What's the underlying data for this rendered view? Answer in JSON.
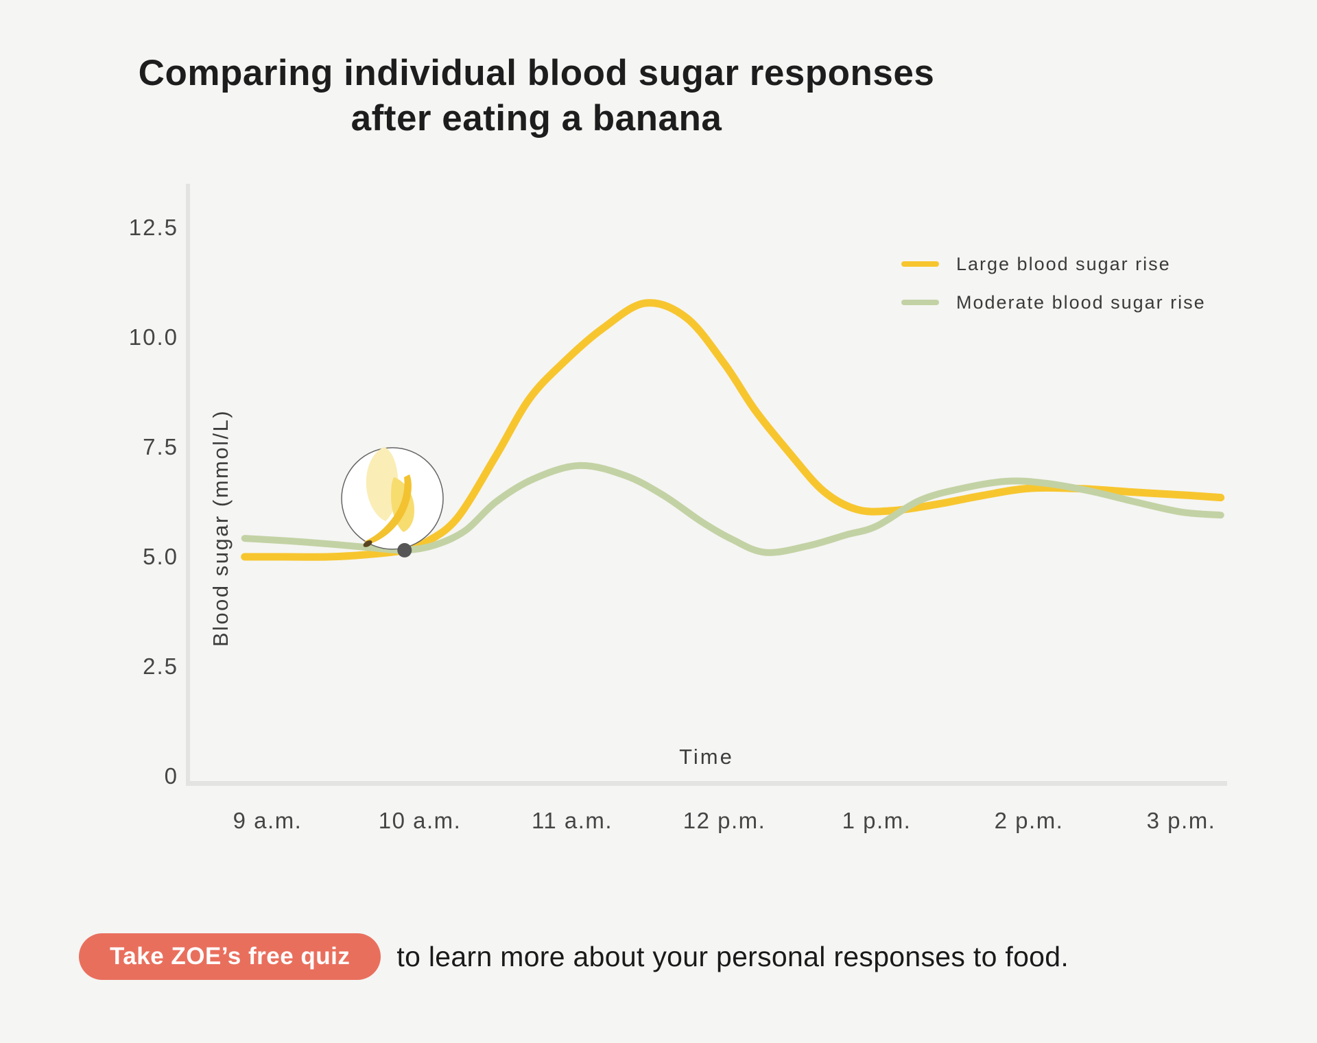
{
  "title": {
    "line1": "Comparing individual blood sugar responses",
    "line2": "after eating a banana"
  },
  "colors": {
    "background": "#F5F5F3",
    "large_series": "#F7C62F",
    "moderate_series": "#C3D2A4",
    "axis_line": "#E3E3E1",
    "marker_dot": "#565656",
    "cta_button": "#E96F5D"
  },
  "chart_data": {
    "type": "line",
    "title": "Comparing individual blood sugar responses after eating a banana",
    "xlabel": "Time",
    "ylabel": "Blood sugar (mmol/L)",
    "x_unit": "hour of day (24h decimal)",
    "x_ticks": [
      9,
      10,
      11,
      12,
      13,
      14,
      15
    ],
    "x_tick_labels": [
      "9 a.m.",
      "10 a.m.",
      "11 a.m.",
      "12 p.m.",
      "1 p.m.",
      "2 p.m.",
      "3 p.m."
    ],
    "y_ticks": [
      0,
      2.5,
      5.0,
      7.5,
      10.0,
      12.5
    ],
    "y_tick_labels": [
      "0",
      "2.5",
      "5.0",
      "7.5",
      "10.0",
      "12.5"
    ],
    "ylim": [
      0,
      13.5
    ],
    "xlim": [
      8.5,
      15.4
    ],
    "grid": false,
    "legend_position": "top-right",
    "series": [
      {
        "name": "Large blood sugar rise",
        "color": "#F7C62F",
        "stroke_width": 11,
        "x": [
          8.85,
          9.1,
          9.4,
          9.65,
          9.9,
          10.05,
          10.25,
          10.5,
          10.72,
          10.95,
          11.2,
          11.48,
          11.75,
          12.0,
          12.2,
          12.42,
          12.65,
          12.87,
          13.1,
          13.4,
          13.7,
          14.0,
          14.35,
          14.7,
          15.05,
          15.26
        ],
        "y": [
          5.0,
          5.0,
          5.0,
          5.05,
          5.15,
          5.35,
          5.9,
          7.3,
          8.6,
          9.45,
          10.2,
          10.78,
          10.45,
          9.4,
          8.35,
          7.4,
          6.5,
          6.08,
          6.05,
          6.2,
          6.4,
          6.56,
          6.55,
          6.47,
          6.4,
          6.35
        ]
      },
      {
        "name": "Moderate blood sugar rise",
        "color": "#C3D2A4",
        "stroke_width": 10,
        "x": [
          8.85,
          9.15,
          9.45,
          9.7,
          9.9,
          10.1,
          10.3,
          10.5,
          10.75,
          11.05,
          11.35,
          11.6,
          11.85,
          12.05,
          12.27,
          12.55,
          12.8,
          13.0,
          13.28,
          13.55,
          13.85,
          14.1,
          14.4,
          14.7,
          15.0,
          15.26
        ],
        "y": [
          5.42,
          5.36,
          5.28,
          5.2,
          5.15,
          5.27,
          5.6,
          6.25,
          6.78,
          7.08,
          6.85,
          6.4,
          5.8,
          5.4,
          5.1,
          5.25,
          5.5,
          5.7,
          6.28,
          6.55,
          6.72,
          6.68,
          6.5,
          6.25,
          6.02,
          5.95
        ]
      }
    ],
    "annotations": [
      {
        "type": "icon-circle",
        "icon": "banana",
        "x": 9.82,
        "y": 6.33,
        "radius_px": 74
      },
      {
        "type": "point-marker",
        "meaning": "banana eaten",
        "x": 9.9,
        "y": 5.15,
        "radius_px": 10.5
      }
    ]
  },
  "cta": {
    "button_label": "Take ZOE’s free quiz",
    "text": "to learn more about your personal responses to food."
  }
}
